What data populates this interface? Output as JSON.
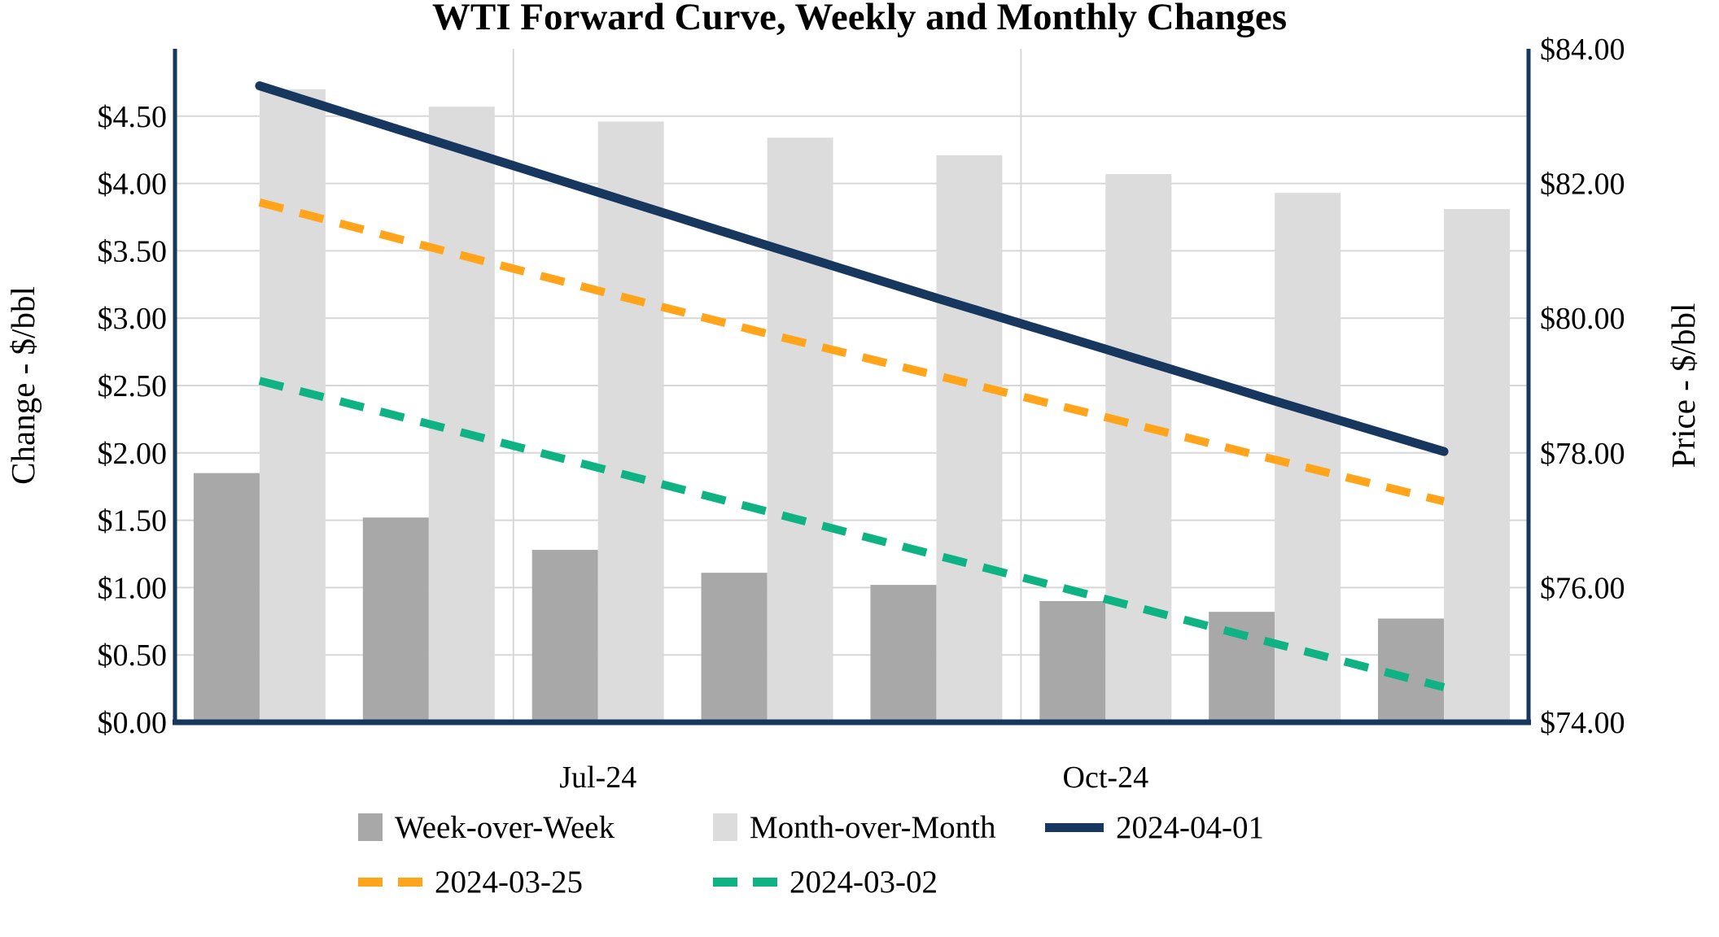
{
  "chart_data": {
    "type": "combo-bar-line",
    "title": "WTI Forward Curve, Weekly and Monthly Changes",
    "categories": [
      "",
      "",
      "Jul-24",
      "",
      "",
      "Oct-24",
      "",
      ""
    ],
    "x_tick_labels": [
      "Jul-24",
      "Oct-24"
    ],
    "x_tick_label_category_index": [
      2,
      5
    ],
    "left_axis": {
      "title": "Change - $/bbl",
      "min": 0,
      "max": 5,
      "tick_step": 0.5,
      "ticks": [
        "$0.00",
        "$0.50",
        "$1.00",
        "$1.50",
        "$2.00",
        "$2.50",
        "$3.00",
        "$3.50",
        "$4.00",
        "$4.50"
      ]
    },
    "right_axis": {
      "title": "Price - $/bbl",
      "min": 74,
      "max": 84,
      "tick_step": 2,
      "ticks": [
        "$74.00",
        "$76.00",
        "$78.00",
        "$80.00",
        "$82.00",
        "$84.00"
      ]
    },
    "grid": {
      "horizontal_step_left_axis": 0.5,
      "vertical_lines_after_category": [
        2,
        5
      ],
      "gridline_color": "#D7D7D7",
      "axis_line_color": "#17375E"
    },
    "bar_series": [
      {
        "name": "Week-over-Week",
        "axis": "left",
        "color": "#A8A8A8",
        "values": [
          1.85,
          1.52,
          1.28,
          1.11,
          1.02,
          0.9,
          0.82,
          0.77
        ]
      },
      {
        "name": "Month-over-Month",
        "axis": "left",
        "color": "#DCDCDC",
        "values": [
          4.7,
          4.57,
          4.46,
          4.34,
          4.21,
          4.07,
          3.93,
          3.81
        ]
      }
    ],
    "line_series": [
      {
        "name": "2024-04-01",
        "axis": "right",
        "color": "#17375E",
        "style": "solid",
        "values": [
          83.45,
          82.66,
          81.87,
          81.08,
          80.3,
          79.54,
          78.77,
          78.02
        ]
      },
      {
        "name": "2024-03-25",
        "axis": "right",
        "color": "#FFA41B",
        "style": "dashed",
        "values": [
          81.72,
          81.06,
          80.41,
          79.77,
          79.15,
          78.53,
          77.9,
          77.28
        ]
      },
      {
        "name": "2024-03-02",
        "axis": "right",
        "color": "#0FB383",
        "style": "dashed",
        "values": [
          79.07,
          78.43,
          77.78,
          77.13,
          76.48,
          75.83,
          75.17,
          74.52
        ]
      }
    ],
    "legend_position": "bottom"
  }
}
